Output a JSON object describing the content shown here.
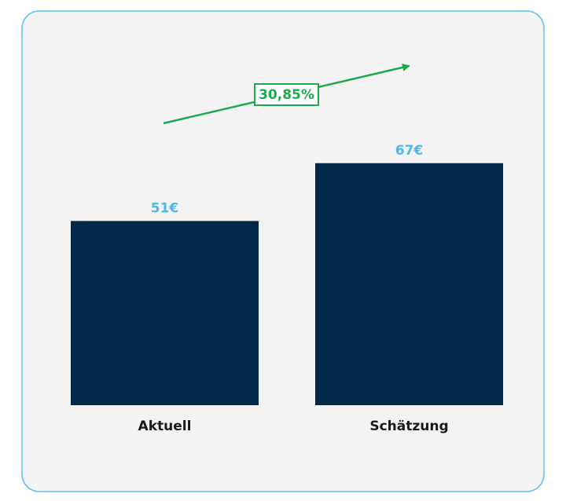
{
  "chart_data": {
    "type": "bar",
    "categories": [
      "Aktuell",
      "Schätzung"
    ],
    "values": [
      51,
      67
    ],
    "value_labels": [
      "51€",
      "67€"
    ],
    "color": "#002a47",
    "annotation": "30,85%"
  }
}
